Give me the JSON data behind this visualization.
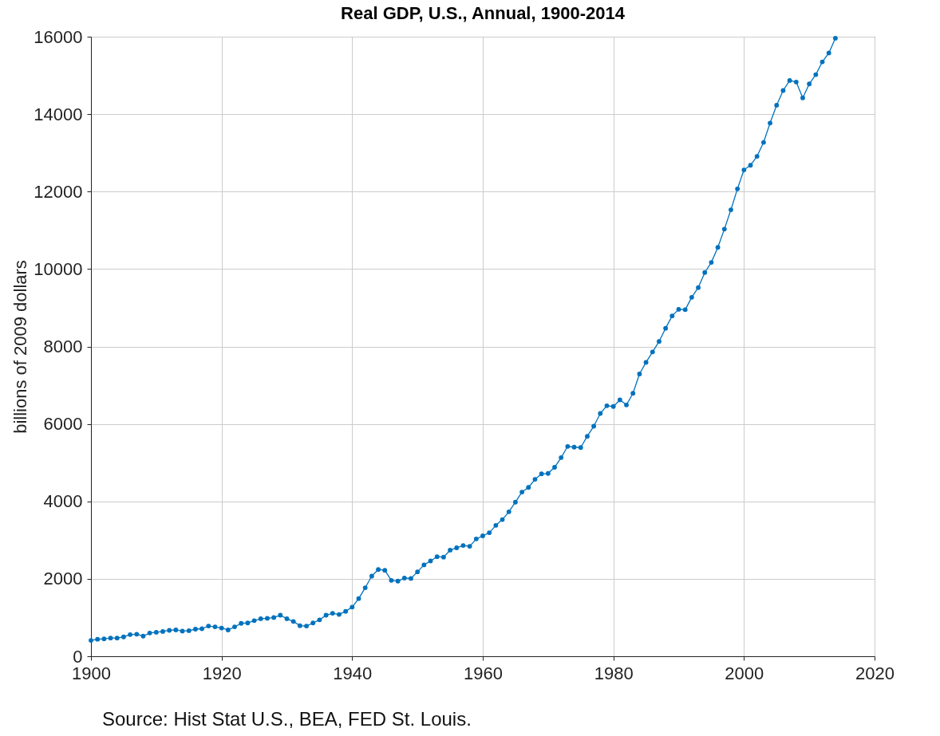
{
  "chart_data": {
    "type": "line",
    "title": "Real GDP, U.S., Annual, 1900-2014",
    "ylabel": "billions of 2009 dollars",
    "annotations": [
      "Source: Hist Stat U.S., BEA, FED St. Louis."
    ],
    "x": [
      1900,
      1901,
      1902,
      1903,
      1904,
      1905,
      1906,
      1907,
      1908,
      1909,
      1910,
      1911,
      1912,
      1913,
      1914,
      1915,
      1916,
      1917,
      1918,
      1919,
      1920,
      1921,
      1922,
      1923,
      1924,
      1925,
      1926,
      1927,
      1928,
      1929,
      1930,
      1931,
      1932,
      1933,
      1934,
      1935,
      1936,
      1937,
      1938,
      1939,
      1940,
      1941,
      1942,
      1943,
      1944,
      1945,
      1946,
      1947,
      1948,
      1949,
      1950,
      1951,
      1952,
      1953,
      1954,
      1955,
      1956,
      1957,
      1958,
      1959,
      1960,
      1961,
      1962,
      1963,
      1964,
      1965,
      1966,
      1967,
      1968,
      1969,
      1970,
      1971,
      1972,
      1973,
      1974,
      1975,
      1976,
      1977,
      1978,
      1979,
      1980,
      1981,
      1982,
      1983,
      1984,
      1985,
      1986,
      1987,
      1988,
      1989,
      1990,
      1991,
      1992,
      1993,
      1994,
      1995,
      1996,
      1997,
      1998,
      1999,
      2000,
      2001,
      2002,
      2003,
      2004,
      2005,
      2006,
      2007,
      2008,
      2009,
      2010,
      2011,
      2012,
      2013,
      2014
    ],
    "series": [
      {
        "color": "#0072bd",
        "values": [
          410,
          440,
          450,
          470,
          470,
          500,
          560,
          570,
          520,
          600,
          620,
          640,
          670,
          680,
          650,
          660,
          700,
          710,
          780,
          760,
          730,
          680,
          760,
          850,
          860,
          920,
          970,
          980,
          1000,
          1060,
          970,
          900,
          790,
          780,
          860,
          940,
          1060,
          1110,
          1080,
          1160,
          1270,
          1490,
          1770,
          2070,
          2240,
          2220,
          1960,
          1940,
          2020,
          2010,
          2180,
          2360,
          2460,
          2570,
          2560,
          2740,
          2800,
          2860,
          2840,
          3030,
          3110,
          3190,
          3380,
          3530,
          3730,
          3980,
          4240,
          4360,
          4570,
          4710,
          4720,
          4880,
          5130,
          5420,
          5400,
          5390,
          5680,
          5940,
          6270,
          6470,
          6450,
          6620,
          6490,
          6790,
          7290,
          7590,
          7860,
          8130,
          8470,
          8790,
          8960,
          8950,
          9270,
          9520,
          9910,
          10170,
          10560,
          11030,
          11530,
          12070,
          12560,
          12680,
          12910,
          13270,
          13770,
          14230,
          14610,
          14870,
          14830,
          14420,
          14780,
          15020,
          15350,
          15580,
          15960
        ]
      }
    ],
    "xlim": [
      1900,
      2020
    ],
    "xticks": [
      1900,
      1920,
      1940,
      1960,
      1980,
      2000,
      2020
    ],
    "ylim": [
      0,
      16000
    ],
    "yticks": [
      0,
      2000,
      4000,
      6000,
      8000,
      10000,
      12000,
      14000,
      16000
    ],
    "grid": true,
    "marker": "circle",
    "line_style": "solid"
  }
}
